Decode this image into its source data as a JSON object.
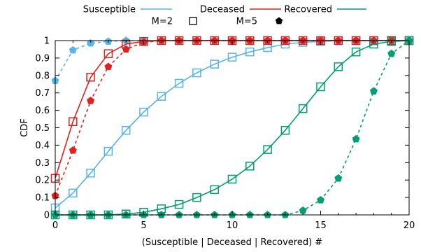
{
  "chart_data": {
    "type": "line",
    "title": "",
    "xlabel": "(Susceptible | Deceased | Recovered) #",
    "ylabel": "CDF",
    "xlim": [
      0,
      20
    ],
    "ylim": [
      0,
      1
    ],
    "x_ticks": [
      "0",
      "5",
      "10",
      "15",
      "20"
    ],
    "y_ticks": [
      "0",
      "0.1",
      "0.2",
      "0.3",
      "0.4",
      "0.5",
      "0.6",
      "0.7",
      "0.8",
      "0.9",
      "1"
    ],
    "grid": false,
    "legend_lines": [
      {
        "label": "Susceptible",
        "color": "#56b4e9"
      },
      {
        "label": "Deceased",
        "color": "#e0211d"
      },
      {
        "label": "Recovered",
        "color": "#009e73"
      }
    ],
    "legend_markers": [
      {
        "label": "M=2",
        "marker": "open-square"
      },
      {
        "label": "M=5",
        "marker": "filled-pentagon"
      }
    ],
    "series": [
      {
        "category": "Susceptible",
        "M": "M=2",
        "color": "#56b4e9",
        "dash": false,
        "marker": "open-square",
        "x": [
          0,
          1,
          2,
          3,
          4,
          5,
          6,
          7,
          8,
          9,
          10,
          11,
          12,
          13,
          14,
          15,
          16,
          17,
          18,
          19,
          20
        ],
        "y": [
          0.04,
          0.125,
          0.24,
          0.365,
          0.485,
          0.59,
          0.68,
          0.755,
          0.815,
          0.865,
          0.905,
          0.935,
          0.96,
          0.98,
          0.99,
          0.995,
          1,
          1,
          1,
          1,
          1
        ]
      },
      {
        "category": "Susceptible",
        "M": "M=5",
        "color": "#56b4e9",
        "dash": true,
        "marker": "filled-pentagon",
        "x": [
          0,
          1,
          2,
          3,
          4,
          5,
          6,
          7,
          8,
          9,
          10,
          11,
          12,
          13,
          14,
          15,
          16,
          17,
          18,
          19,
          20
        ],
        "y": [
          0.77,
          0.945,
          0.985,
          0.995,
          1,
          1,
          1,
          1,
          1,
          1,
          1,
          1,
          1,
          1,
          1,
          1,
          1,
          1,
          1,
          1,
          1
        ]
      },
      {
        "category": "Deceased",
        "M": "M=2",
        "color": "#e0211d",
        "dash": false,
        "marker": "open-square",
        "x": [
          0,
          1,
          2,
          3,
          4,
          5,
          6,
          7,
          8,
          9,
          10,
          11,
          12,
          13,
          14,
          15,
          16,
          17,
          18,
          19,
          20
        ],
        "y": [
          0.21,
          0.535,
          0.79,
          0.925,
          0.98,
          0.995,
          1,
          1,
          1,
          1,
          1,
          1,
          1,
          1,
          1,
          1,
          1,
          1,
          1,
          1,
          1
        ]
      },
      {
        "category": "Deceased",
        "M": "M=5",
        "color": "#e0211d",
        "dash": true,
        "marker": "filled-pentagon",
        "x": [
          0,
          1,
          2,
          3,
          4,
          5,
          6,
          7,
          8,
          9,
          10,
          11,
          12,
          13,
          14,
          15,
          16,
          17,
          18,
          19,
          20
        ],
        "y": [
          0.11,
          0.37,
          0.655,
          0.85,
          0.95,
          0.99,
          1,
          1,
          1,
          1,
          1,
          1,
          1,
          1,
          1,
          1,
          1,
          1,
          1,
          1,
          1
        ]
      },
      {
        "category": "Recovered",
        "M": "M=2",
        "color": "#009e73",
        "dash": false,
        "marker": "open-square",
        "x": [
          0,
          1,
          2,
          3,
          4,
          5,
          6,
          7,
          8,
          9,
          10,
          11,
          12,
          13,
          14,
          15,
          16,
          17,
          18,
          19,
          20
        ],
        "y": [
          0,
          0,
          0,
          0,
          0.005,
          0.015,
          0.035,
          0.06,
          0.1,
          0.145,
          0.205,
          0.28,
          0.375,
          0.485,
          0.61,
          0.735,
          0.85,
          0.935,
          0.98,
          0.995,
          1
        ]
      },
      {
        "category": "Recovered",
        "M": "M=5",
        "color": "#009e73",
        "dash": true,
        "marker": "filled-pentagon",
        "x": [
          0,
          1,
          2,
          3,
          4,
          5,
          6,
          7,
          8,
          9,
          10,
          11,
          12,
          13,
          14,
          15,
          16,
          17,
          18,
          19,
          20
        ],
        "y": [
          0,
          0,
          0,
          0,
          0,
          0,
          0,
          0,
          0,
          0,
          0,
          0,
          0,
          0,
          0.025,
          0.085,
          0.21,
          0.435,
          0.71,
          0.925,
          1
        ]
      }
    ]
  }
}
